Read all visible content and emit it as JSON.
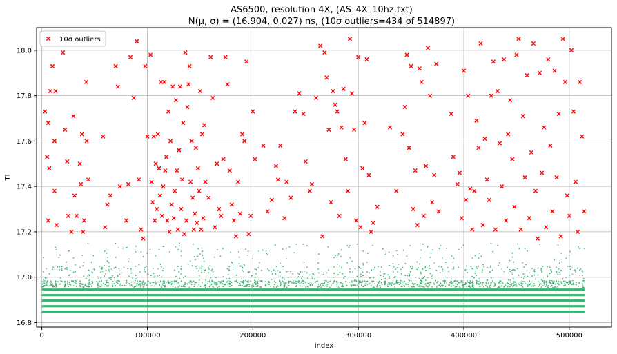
{
  "chart_data": {
    "type": "scatter",
    "title_line1": "AS6500, resolution 4X, (AS_4X_10hz.txt)",
    "title_line2_prefix": "N(μ, σ) = (16.904, 0.027) ns, (10σ outliers=434 of 514897)",
    "xlabel": "index",
    "ylabel": "TI",
    "xlim": [
      -5000,
      540000
    ],
    "ylim": [
      16.78,
      18.1
    ],
    "xticks": [
      0,
      100000,
      200000,
      300000,
      400000,
      500000
    ],
    "xtick_labels": [
      "0",
      "100000",
      "200000",
      "300000",
      "400000",
      "500000"
    ],
    "yticks": [
      16.8,
      17.0,
      17.2,
      17.4,
      17.6,
      17.8,
      18.0
    ],
    "ytick_labels": [
      "16.8",
      "17.0",
      "17.2",
      "17.4",
      "17.6",
      "17.8",
      "18.0"
    ],
    "grid": true,
    "legend": {
      "position": "top-left",
      "label": "10σ outliers"
    },
    "colors": {
      "inlier": "#3cb371",
      "outlier": "#ff0000",
      "grid": "#b0b0b0"
    },
    "band_levels": [
      16.848,
      16.872,
      16.897,
      16.921,
      16.945
    ],
    "outliers": [
      [
        3000,
        17.73
      ],
      [
        5000,
        17.53
      ],
      [
        6000,
        17.68
      ],
      [
        7000,
        17.48
      ],
      [
        8000,
        17.82
      ],
      [
        10000,
        17.93
      ],
      [
        12000,
        17.6
      ],
      [
        13000,
        17.82
      ],
      [
        14000,
        17.23
      ],
      [
        6000,
        17.25
      ],
      [
        12000,
        17.38
      ],
      [
        20000,
        17.99
      ],
      [
        22000,
        17.65
      ],
      [
        24000,
        17.51
      ],
      [
        25000,
        17.27
      ],
      [
        28000,
        17.2
      ],
      [
        30000,
        17.71
      ],
      [
        31000,
        17.36
      ],
      [
        33000,
        17.27
      ],
      [
        36000,
        17.5
      ],
      [
        37000,
        17.41
      ],
      [
        38000,
        17.63
      ],
      [
        39000,
        17.2
      ],
      [
        40000,
        17.25
      ],
      [
        42000,
        17.86
      ],
      [
        42500,
        17.6
      ],
      [
        44000,
        17.43
      ],
      [
        58000,
        17.62
      ],
      [
        60000,
        17.22
      ],
      [
        62000,
        17.32
      ],
      [
        65000,
        17.36
      ],
      [
        70000,
        17.93
      ],
      [
        72000,
        17.84
      ],
      [
        74000,
        17.4
      ],
      [
        80000,
        17.25
      ],
      [
        82000,
        17.41
      ],
      [
        84000,
        17.97
      ],
      [
        87000,
        17.79
      ],
      [
        90000,
        18.04
      ],
      [
        92000,
        17.43
      ],
      [
        94000,
        17.21
      ],
      [
        96000,
        17.17
      ],
      [
        98000,
        17.93
      ],
      [
        100000,
        17.62
      ],
      [
        103000,
        17.98
      ],
      [
        104000,
        17.42
      ],
      [
        105000,
        17.33
      ],
      [
        106000,
        17.62
      ],
      [
        107000,
        17.25
      ],
      [
        108000,
        17.5
      ],
      [
        109000,
        17.3
      ],
      [
        110000,
        17.63
      ],
      [
        111000,
        17.48
      ],
      [
        112000,
        17.36
      ],
      [
        113000,
        17.86
      ],
      [
        114000,
        17.27
      ],
      [
        115000,
        17.4
      ],
      [
        116000,
        17.86
      ],
      [
        117000,
        17.47
      ],
      [
        118000,
        17.53
      ],
      [
        119000,
        17.25
      ],
      [
        120000,
        17.73
      ],
      [
        121000,
        17.2
      ],
      [
        122000,
        17.6
      ],
      [
        123000,
        17.32
      ],
      [
        124000,
        17.84
      ],
      [
        125000,
        17.26
      ],
      [
        126000,
        17.38
      ],
      [
        127000,
        17.78
      ],
      [
        128000,
        17.47
      ],
      [
        129000,
        17.21
      ],
      [
        130000,
        17.56
      ],
      [
        131000,
        17.84
      ],
      [
        132000,
        17.3
      ],
      [
        133000,
        17.43
      ],
      [
        134000,
        17.68
      ],
      [
        135000,
        17.19
      ],
      [
        136000,
        17.99
      ],
      [
        137000,
        17.25
      ],
      [
        138000,
        17.75
      ],
      [
        139000,
        17.85
      ],
      [
        140000,
        17.93
      ],
      [
        141000,
        17.42
      ],
      [
        142000,
        17.6
      ],
      [
        143000,
        17.35
      ],
      [
        144000,
        17.21
      ],
      [
        145000,
        17.28
      ],
      [
        146000,
        17.57
      ],
      [
        147000,
        17.24
      ],
      [
        148000,
        17.48
      ],
      [
        149000,
        17.38
      ],
      [
        150000,
        17.82
      ],
      [
        151000,
        17.21
      ],
      [
        152000,
        17.63
      ],
      [
        153000,
        17.26
      ],
      [
        154000,
        17.67
      ],
      [
        155000,
        17.42
      ],
      [
        158000,
        17.35
      ],
      [
        160000,
        17.97
      ],
      [
        162000,
        17.79
      ],
      [
        164000,
        17.22
      ],
      [
        166000,
        17.5
      ],
      [
        168000,
        17.3
      ],
      [
        170000,
        17.27
      ],
      [
        172000,
        17.52
      ],
      [
        174000,
        17.97
      ],
      [
        176000,
        17.85
      ],
      [
        178000,
        17.47
      ],
      [
        180000,
        17.32
      ],
      [
        182000,
        17.25
      ],
      [
        184000,
        17.18
      ],
      [
        186000,
        17.42
      ],
      [
        188000,
        17.28
      ],
      [
        190000,
        17.63
      ],
      [
        192000,
        17.6
      ],
      [
        194000,
        17.95
      ],
      [
        196000,
        17.19
      ],
      [
        198000,
        17.27
      ],
      [
        200000,
        17.73
      ],
      [
        202000,
        17.52
      ],
      [
        210000,
        17.58
      ],
      [
        214000,
        17.29
      ],
      [
        218000,
        17.34
      ],
      [
        222000,
        17.49
      ],
      [
        224000,
        17.43
      ],
      [
        226000,
        17.58
      ],
      [
        230000,
        17.26
      ],
      [
        232000,
        17.42
      ],
      [
        236000,
        17.35
      ],
      [
        240000,
        17.73
      ],
      [
        244000,
        17.81
      ],
      [
        248000,
        17.72
      ],
      [
        250000,
        17.51
      ],
      [
        254000,
        17.38
      ],
      [
        256000,
        17.41
      ],
      [
        260000,
        17.79
      ],
      [
        264000,
        18.02
      ],
      [
        266000,
        17.18
      ],
      [
        268000,
        17.99
      ],
      [
        270000,
        17.88
      ],
      [
        272000,
        17.65
      ],
      [
        274000,
        17.33
      ],
      [
        276000,
        17.82
      ],
      [
        278000,
        17.76
      ],
      [
        280000,
        17.73
      ],
      [
        282000,
        17.27
      ],
      [
        284000,
        17.66
      ],
      [
        286000,
        17.83
      ],
      [
        288000,
        17.52
      ],
      [
        290000,
        17.38
      ],
      [
        292000,
        18.05
      ],
      [
        294000,
        17.81
      ],
      [
        296000,
        17.65
      ],
      [
        298000,
        17.25
      ],
      [
        300000,
        17.97
      ],
      [
        302000,
        17.22
      ],
      [
        304000,
        17.48
      ],
      [
        306000,
        17.68
      ],
      [
        308000,
        17.96
      ],
      [
        310000,
        17.45
      ],
      [
        312000,
        17.2
      ],
      [
        314000,
        17.24
      ],
      [
        318000,
        17.31
      ],
      [
        330000,
        17.66
      ],
      [
        336000,
        17.38
      ],
      [
        342000,
        17.63
      ],
      [
        344000,
        17.75
      ],
      [
        346000,
        17.98
      ],
      [
        348000,
        17.57
      ],
      [
        350000,
        17.93
      ],
      [
        352000,
        17.3
      ],
      [
        354000,
        17.47
      ],
      [
        356000,
        17.23
      ],
      [
        358000,
        17.92
      ],
      [
        360000,
        17.86
      ],
      [
        362000,
        17.27
      ],
      [
        364000,
        17.49
      ],
      [
        366000,
        18.01
      ],
      [
        368000,
        17.8
      ],
      [
        370000,
        17.33
      ],
      [
        372000,
        17.45
      ],
      [
        374000,
        17.94
      ],
      [
        376000,
        17.29
      ],
      [
        388000,
        17.72
      ],
      [
        390000,
        17.53
      ],
      [
        394000,
        17.41
      ],
      [
        396000,
        17.46
      ],
      [
        398000,
        17.26
      ],
      [
        400000,
        17.91
      ],
      [
        402000,
        17.34
      ],
      [
        404000,
        17.8
      ],
      [
        406000,
        17.39
      ],
      [
        408000,
        17.21
      ],
      [
        410000,
        17.38
      ],
      [
        412000,
        17.69
      ],
      [
        414000,
        17.57
      ],
      [
        416000,
        18.03
      ],
      [
        418000,
        17.23
      ],
      [
        420000,
        17.61
      ],
      [
        422000,
        17.43
      ],
      [
        424000,
        17.34
      ],
      [
        426000,
        17.8
      ],
      [
        428000,
        17.95
      ],
      [
        430000,
        17.21
      ],
      [
        432000,
        17.82
      ],
      [
        434000,
        17.59
      ],
      [
        436000,
        17.4
      ],
      [
        438000,
        17.96
      ],
      [
        440000,
        17.25
      ],
      [
        442000,
        17.63
      ],
      [
        444000,
        17.78
      ],
      [
        446000,
        17.52
      ],
      [
        448000,
        17.31
      ],
      [
        450000,
        17.98
      ],
      [
        452000,
        18.05
      ],
      [
        454000,
        17.21
      ],
      [
        456000,
        17.71
      ],
      [
        458000,
        17.44
      ],
      [
        460000,
        17.89
      ],
      [
        462000,
        17.26
      ],
      [
        464000,
        17.55
      ],
      [
        466000,
        18.03
      ],
      [
        468000,
        17.38
      ],
      [
        470000,
        17.17
      ],
      [
        472000,
        17.9
      ],
      [
        474000,
        17.46
      ],
      [
        476000,
        17.66
      ],
      [
        478000,
        17.22
      ],
      [
        480000,
        17.96
      ],
      [
        482000,
        17.58
      ],
      [
        484000,
        17.29
      ],
      [
        486000,
        17.91
      ],
      [
        488000,
        17.44
      ],
      [
        490000,
        17.72
      ],
      [
        492000,
        17.18
      ],
      [
        494000,
        18.05
      ],
      [
        496000,
        17.86
      ],
      [
        498000,
        17.36
      ],
      [
        500000,
        17.27
      ],
      [
        502000,
        18.0
      ],
      [
        504000,
        17.73
      ],
      [
        506000,
        17.42
      ],
      [
        508000,
        17.2
      ],
      [
        510000,
        17.86
      ],
      [
        512000,
        17.62
      ],
      [
        514000,
        17.29
      ]
    ]
  }
}
